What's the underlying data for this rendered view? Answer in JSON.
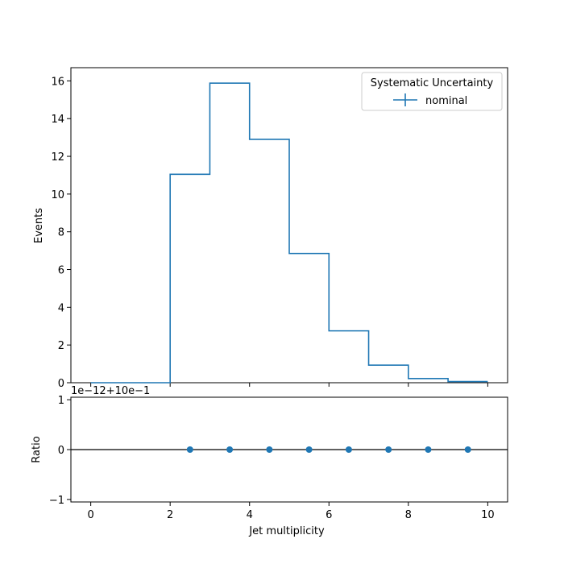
{
  "chart_data": [
    {
      "type": "line",
      "panel": "main",
      "ylabel": "Events",
      "xlim": [
        -0.5,
        10.5
      ],
      "ylim": [
        0,
        16.7
      ],
      "yticks": [
        0,
        2,
        4,
        6,
        8,
        10,
        12,
        14,
        16
      ],
      "bin_edges": [
        0,
        1,
        2,
        3,
        4,
        5,
        6,
        7,
        8,
        9,
        10
      ],
      "series": [
        {
          "name": "nominal",
          "color": "#1f77b4",
          "drawstyle": "steps",
          "values": [
            0,
            0,
            11.05,
            15.88,
            12.9,
            6.85,
            2.75,
            0.93,
            0.22,
            0.06
          ]
        }
      ],
      "legend": {
        "title": "Systematic Uncertainty",
        "placement": "top-right"
      },
      "grid": false
    },
    {
      "type": "scatter",
      "panel": "ratio",
      "xlabel": "Jet multiplicity",
      "ylabel": "Ratio",
      "offset_text": "1e−12+10e−1",
      "xlim": [
        -0.5,
        10.5
      ],
      "ylim": [
        -1.05,
        1.05
      ],
      "xticks": [
        0,
        2,
        4,
        6,
        8,
        10
      ],
      "yticks": [
        -1,
        0,
        1
      ],
      "reference_line": 0,
      "series": [
        {
          "color": "#1f77b4",
          "x": [
            2.5,
            3.5,
            4.5,
            5.5,
            6.5,
            7.5,
            8.5,
            9.5
          ],
          "y": [
            0,
            0,
            0,
            0,
            0,
            0,
            0,
            0
          ]
        }
      ],
      "grid": false
    }
  ]
}
